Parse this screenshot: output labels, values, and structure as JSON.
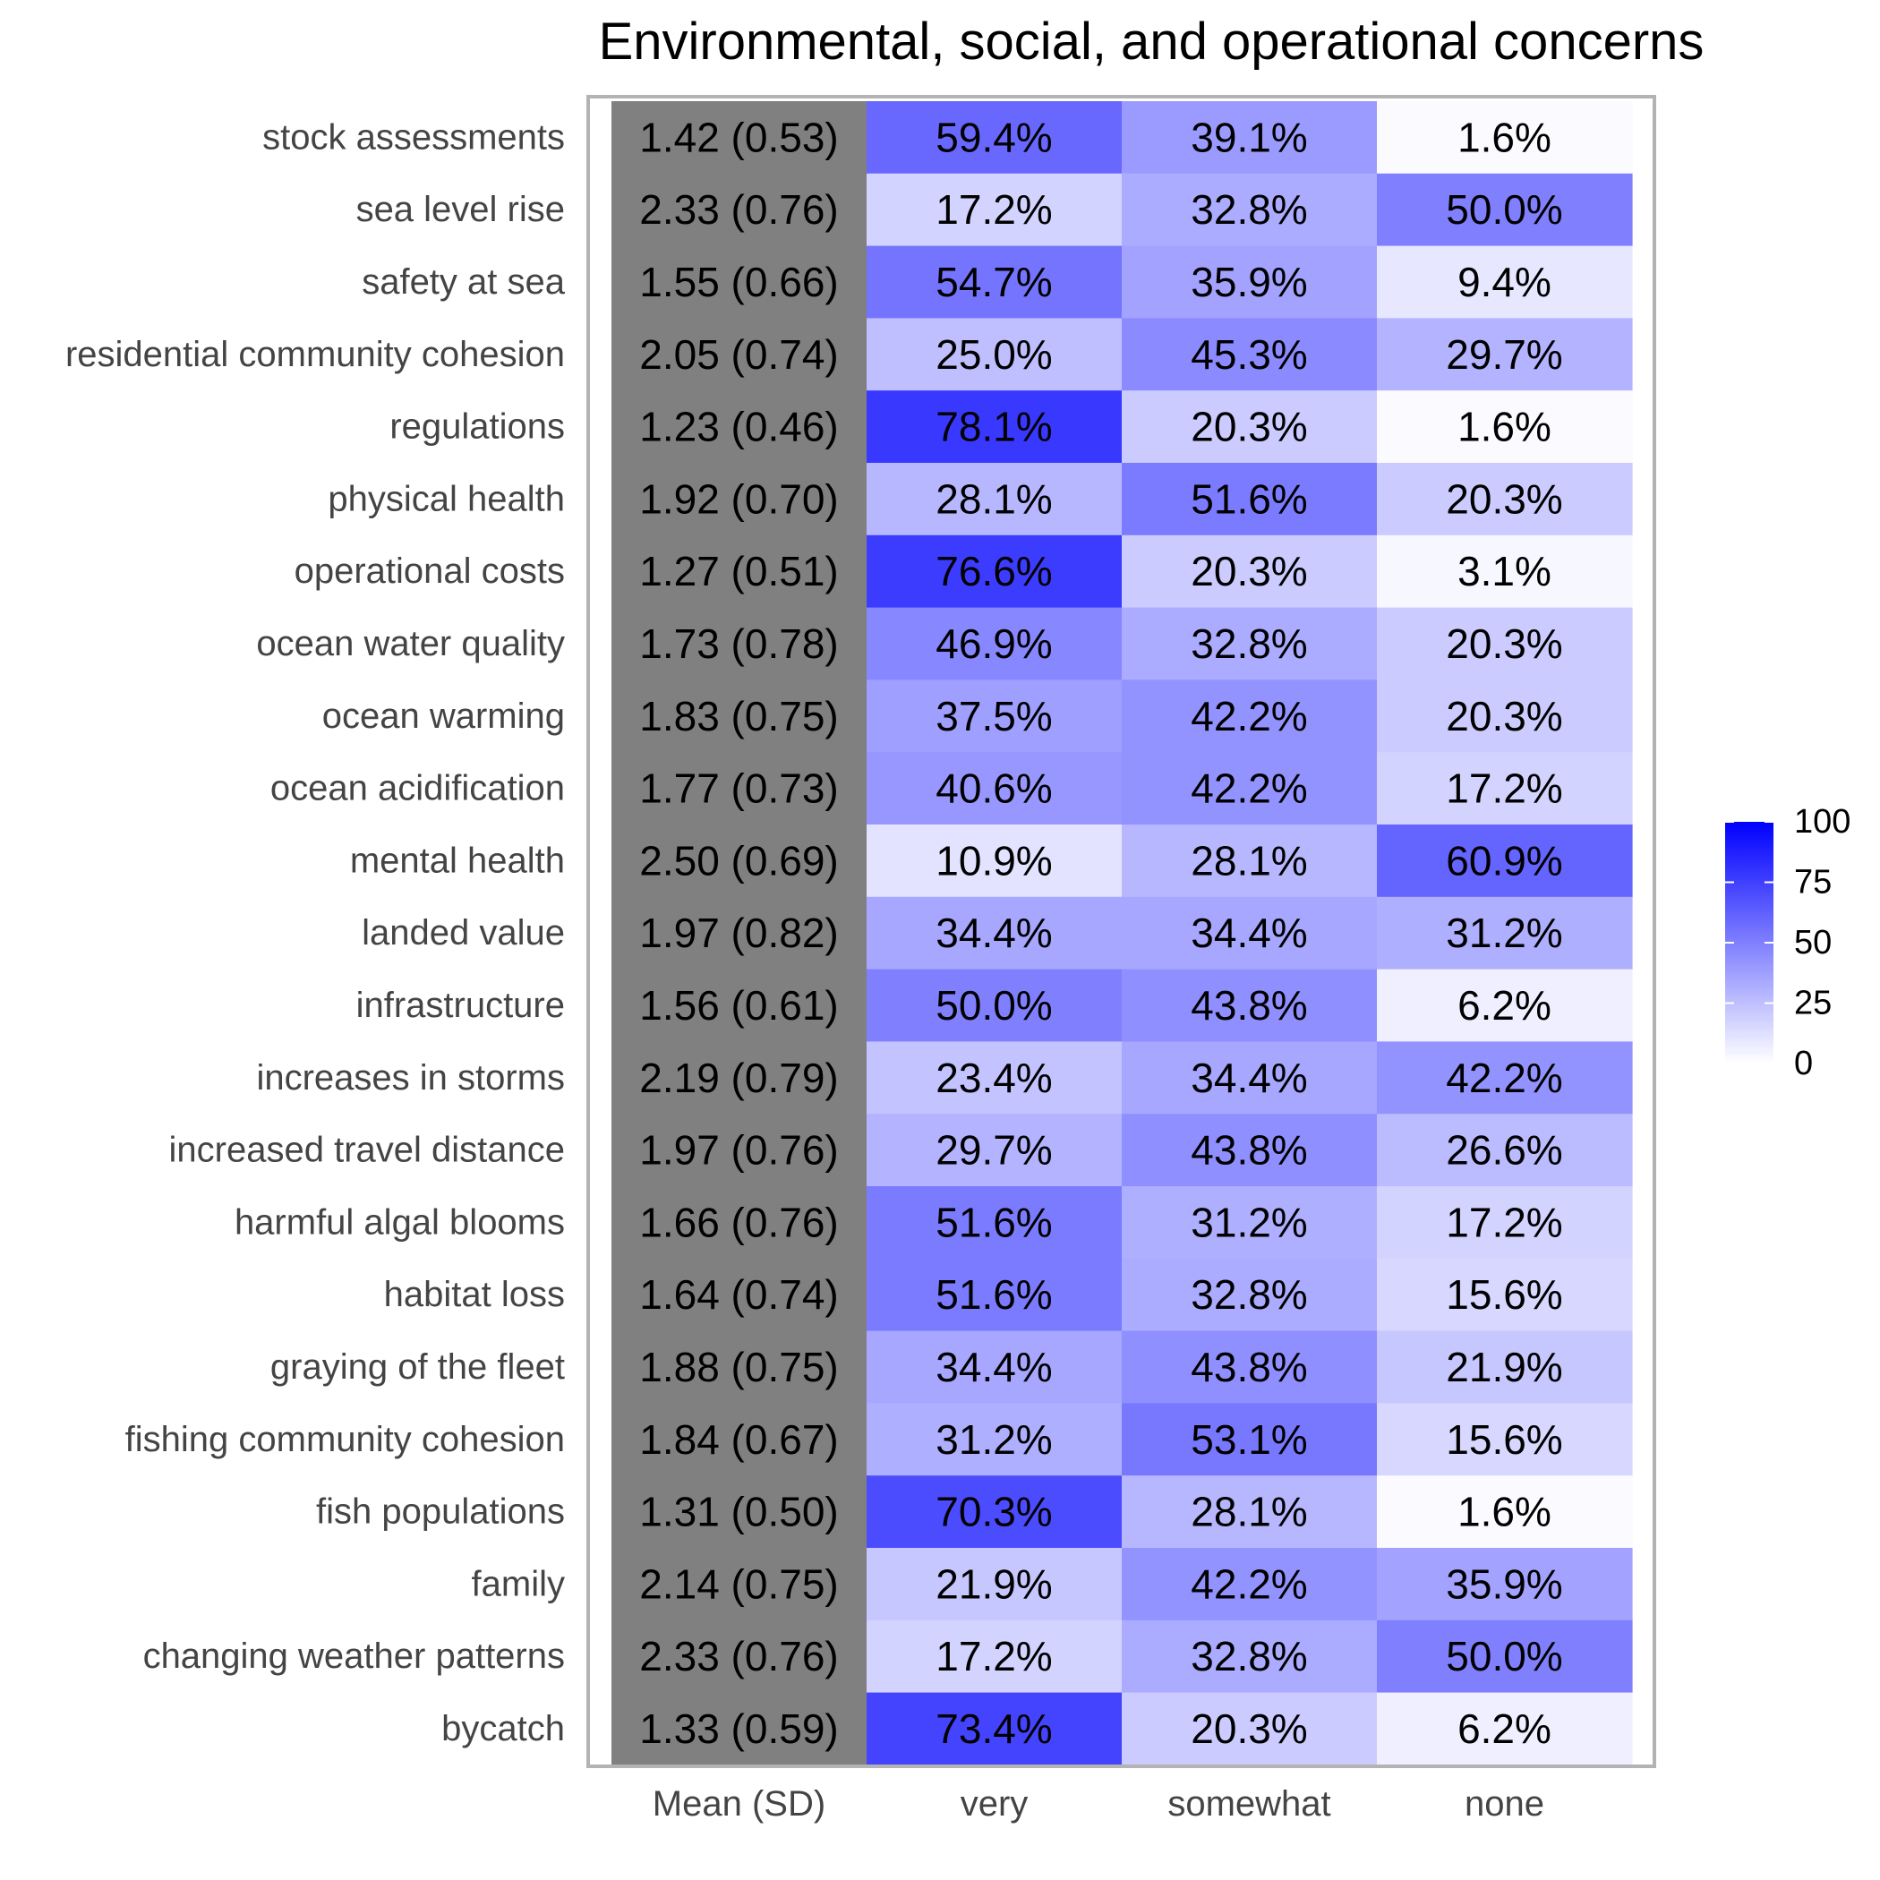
{
  "chart_data": {
    "type": "heatmap",
    "title": "Environmental, social, and operational concerns",
    "columns": [
      "Mean (SD)",
      "very",
      "somewhat",
      "none"
    ],
    "rows": [
      {
        "label": "stock assessments",
        "mean_sd": "1.42 (0.53)",
        "values": [
          59.4,
          39.1,
          1.6
        ]
      },
      {
        "label": "sea level rise",
        "mean_sd": "2.33 (0.76)",
        "values": [
          17.2,
          32.8,
          50.0
        ]
      },
      {
        "label": "safety at sea",
        "mean_sd": "1.55 (0.66)",
        "values": [
          54.7,
          35.9,
          9.4
        ]
      },
      {
        "label": "residential community cohesion",
        "mean_sd": "2.05 (0.74)",
        "values": [
          25.0,
          45.3,
          29.7
        ]
      },
      {
        "label": "regulations",
        "mean_sd": "1.23 (0.46)",
        "values": [
          78.1,
          20.3,
          1.6
        ]
      },
      {
        "label": "physical health",
        "mean_sd": "1.92 (0.70)",
        "values": [
          28.1,
          51.6,
          20.3
        ]
      },
      {
        "label": "operational costs",
        "mean_sd": "1.27 (0.51)",
        "values": [
          76.6,
          20.3,
          3.1
        ]
      },
      {
        "label": "ocean water quality",
        "mean_sd": "1.73 (0.78)",
        "values": [
          46.9,
          32.8,
          20.3
        ]
      },
      {
        "label": "ocean warming",
        "mean_sd": "1.83 (0.75)",
        "values": [
          37.5,
          42.2,
          20.3
        ]
      },
      {
        "label": "ocean acidification",
        "mean_sd": "1.77 (0.73)",
        "values": [
          40.6,
          42.2,
          17.2
        ]
      },
      {
        "label": "mental health",
        "mean_sd": "2.50 (0.69)",
        "values": [
          10.9,
          28.1,
          60.9
        ]
      },
      {
        "label": "landed value",
        "mean_sd": "1.97 (0.82)",
        "values": [
          34.4,
          34.4,
          31.2
        ]
      },
      {
        "label": "infrastructure",
        "mean_sd": "1.56 (0.61)",
        "values": [
          50.0,
          43.8,
          6.2
        ]
      },
      {
        "label": "increases in storms",
        "mean_sd": "2.19 (0.79)",
        "values": [
          23.4,
          34.4,
          42.2
        ]
      },
      {
        "label": "increased travel distance",
        "mean_sd": "1.97 (0.76)",
        "values": [
          29.7,
          43.8,
          26.6
        ]
      },
      {
        "label": "harmful algal blooms",
        "mean_sd": "1.66 (0.76)",
        "values": [
          51.6,
          31.2,
          17.2
        ]
      },
      {
        "label": "habitat loss",
        "mean_sd": "1.64 (0.74)",
        "values": [
          51.6,
          32.8,
          15.6
        ]
      },
      {
        "label": "graying of the fleet",
        "mean_sd": "1.88 (0.75)",
        "values": [
          34.4,
          43.8,
          21.9
        ]
      },
      {
        "label": "fishing community cohesion",
        "mean_sd": "1.84 (0.67)",
        "values": [
          31.2,
          53.1,
          15.6
        ]
      },
      {
        "label": "fish populations",
        "mean_sd": "1.31 (0.50)",
        "values": [
          70.3,
          28.1,
          1.6
        ]
      },
      {
        "label": "family",
        "mean_sd": "2.14 (0.75)",
        "values": [
          21.9,
          42.2,
          35.9
        ]
      },
      {
        "label": "changing weather patterns",
        "mean_sd": "2.33 (0.76)",
        "values": [
          17.2,
          32.8,
          50.0
        ]
      },
      {
        "label": "bycatch",
        "mean_sd": "1.33 (0.59)",
        "values": [
          73.4,
          20.3,
          6.2
        ]
      }
    ],
    "value_suffix": "%",
    "color_scale": {
      "low": "#ffffff",
      "high": "#0000ff",
      "min": 0,
      "max": 100
    },
    "mean_column_color": "#808080",
    "legend": {
      "position": "right",
      "ticks": [
        0,
        25,
        50,
        75,
        100
      ]
    },
    "grid": false
  }
}
